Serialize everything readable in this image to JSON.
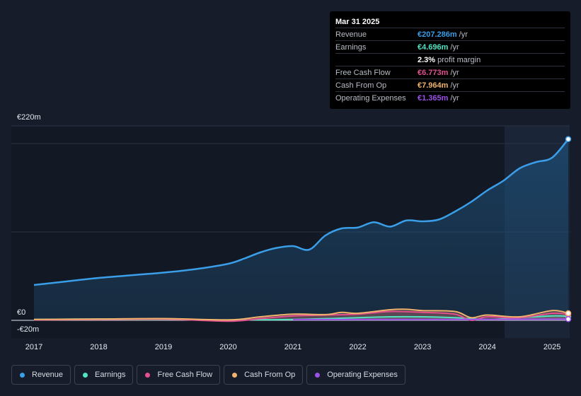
{
  "tooltip": {
    "date": "Mar 31 2025",
    "rows": [
      {
        "label": "Revenue",
        "value": "€207.286m",
        "unit": "/yr",
        "color": "#3b9ee8"
      },
      {
        "label": "Earnings",
        "value": "€4.696m",
        "unit": "/yr",
        "color": "#52e3c2"
      },
      {
        "label": "",
        "value": "2.3%",
        "unit": "profit margin",
        "color": "#ffffff"
      },
      {
        "label": "Free Cash Flow",
        "value": "€6.773m",
        "unit": "/yr",
        "color": "#e4508f"
      },
      {
        "label": "Cash From Op",
        "value": "€7.964m",
        "unit": "/yr",
        "color": "#f1b36b"
      },
      {
        "label": "Operating Expenses",
        "value": "€1.365m",
        "unit": "/yr",
        "color": "#9b51e8"
      }
    ]
  },
  "chart_data": {
    "type": "area",
    "y_tick_labels": [
      "€220m",
      "€0",
      "-€20m"
    ],
    "ylim": [
      -20,
      220
    ],
    "x_tick_labels": [
      "2017",
      "2018",
      "2019",
      "2020",
      "2021",
      "2022",
      "2023",
      "2024",
      "2025"
    ],
    "xlim": [
      2017.0,
      2025.25
    ],
    "grid": true,
    "legend_position": "bottom",
    "series": [
      {
        "name": "Revenue",
        "color": "#3b9ee8",
        "fill": true,
        "x": [
          2017.0,
          2017.5,
          2018.0,
          2018.5,
          2019.0,
          2019.5,
          2020.0,
          2020.25,
          2020.5,
          2020.75,
          2021.0,
          2021.25,
          2021.5,
          2021.75,
          2022.0,
          2022.25,
          2022.5,
          2022.75,
          2023.0,
          2023.25,
          2023.5,
          2023.75,
          2024.0,
          2024.25,
          2024.5,
          2024.75,
          2025.0,
          2025.25
        ],
        "y": [
          40,
          44,
          48,
          51,
          54,
          58,
          64,
          70,
          77,
          82,
          84,
          80,
          96,
          104,
          105,
          111,
          106,
          113,
          112,
          114,
          123,
          134,
          147,
          158,
          172,
          179,
          184,
          205
        ]
      },
      {
        "name": "Earnings",
        "color": "#52e3c2",
        "fill": false,
        "x": [
          2017.0,
          2018.0,
          2019.0,
          2020.0,
          2021.0,
          2022.0,
          2022.5,
          2023.0,
          2023.5,
          2024.0,
          2024.5,
          2025.0,
          2025.25
        ],
        "y": [
          1,
          1.5,
          1.5,
          0.5,
          1,
          3,
          4,
          4,
          3,
          1,
          3,
          5,
          4.7
        ]
      },
      {
        "name": "Free Cash Flow",
        "color": "#e4508f",
        "fill": false,
        "x": [
          2017.0,
          2018.0,
          2019.0,
          2020.0,
          2020.5,
          2021.0,
          2021.5,
          2022.0,
          2022.5,
          2023.0,
          2023.5,
          2023.75,
          2024.0,
          2024.5,
          2025.0,
          2025.25
        ],
        "y": [
          0.5,
          1,
          1.5,
          -1,
          2,
          5,
          6,
          7,
          10,
          9,
          7,
          0,
          4,
          3,
          8,
          6.8
        ]
      },
      {
        "name": "Cash From Op",
        "color": "#f1b36b",
        "fill": false,
        "x": [
          2017.0,
          2018.0,
          2019.0,
          2020.0,
          2020.5,
          2021.0,
          2021.5,
          2021.75,
          2022.0,
          2022.5,
          2022.75,
          2023.0,
          2023.5,
          2023.75,
          2024.0,
          2024.5,
          2025.0,
          2025.25
        ],
        "y": [
          1,
          1.5,
          2,
          0.5,
          4,
          7,
          6.5,
          9,
          8,
          12,
          12.5,
          11,
          10,
          3,
          6,
          4,
          11,
          8
        ]
      },
      {
        "name": "Operating Expenses",
        "color": "#9b51e8",
        "fill": false,
        "x": [
          2021.0,
          2022.0,
          2023.0,
          2024.0,
          2025.0,
          2025.25
        ],
        "y": [
          0.8,
          0.9,
          1.0,
          1.1,
          1.3,
          1.4
        ]
      }
    ]
  }
}
